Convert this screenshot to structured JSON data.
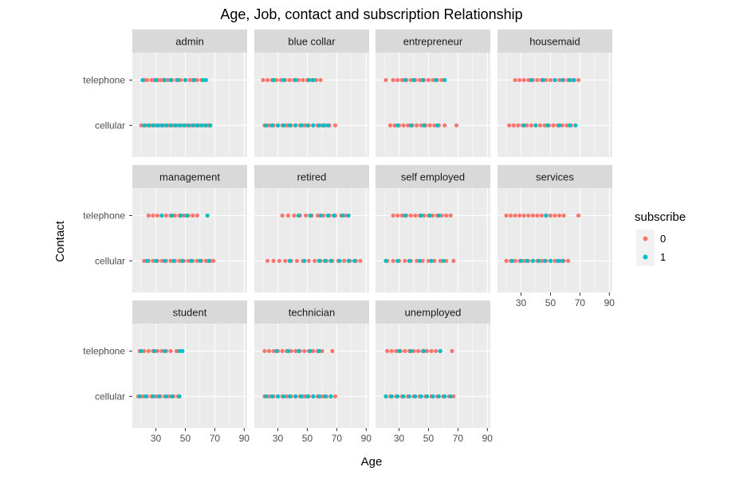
{
  "chart_data": {
    "type": "scatter",
    "title": "Age, Job, contact and subscription Relationship",
    "xlabel": "Age",
    "ylabel": "Contact",
    "xlim": [
      14,
      92
    ],
    "x_ticks": [
      30,
      50,
      70,
      90
    ],
    "y_categories": [
      "cellular",
      "telephone"
    ],
    "grid": true,
    "legend": {
      "title": "subscribe",
      "placement": "right",
      "entries": [
        {
          "label": "0",
          "color": "#F8766D"
        },
        {
          "label": "1",
          "color": "#00BFC4"
        }
      ]
    },
    "facets": [
      {
        "name": "admin",
        "telephone": {
          "0": [
            22,
            24,
            27,
            29,
            31,
            33,
            35,
            38,
            41,
            44,
            47,
            50,
            53,
            55,
            58,
            61
          ],
          "1": [
            21,
            30,
            36,
            40,
            45,
            50,
            56,
            62,
            64
          ]
        },
        "cellular": {
          "0": [
            20,
            23,
            26,
            29,
            32,
            35,
            38,
            41,
            44,
            47,
            50,
            53,
            56,
            59,
            63,
            66
          ],
          "1": [
            22,
            25,
            28,
            31,
            34,
            37,
            40,
            43,
            46,
            49,
            52,
            55,
            58,
            61,
            64,
            67
          ]
        }
      },
      {
        "name": "blue collar",
        "telephone": {
          "0": [
            20,
            23,
            26,
            29,
            32,
            35,
            38,
            41,
            44,
            47,
            50,
            53,
            56,
            59
          ],
          "1": [
            27,
            34,
            42,
            51,
            54
          ]
        },
        "cellular": {
          "0": [
            21,
            24,
            27,
            30,
            33,
            36,
            39,
            42,
            45,
            48,
            51,
            54,
            57,
            60,
            62,
            65,
            69
          ],
          "1": [
            22,
            26,
            30,
            34,
            38,
            42,
            46,
            50,
            54,
            58,
            61,
            64
          ]
        }
      },
      {
        "name": "entrepreneur",
        "telephone": {
          "0": [
            21,
            26,
            29,
            32,
            35,
            38,
            41,
            44,
            47,
            50,
            53,
            56,
            59
          ],
          "1": [
            34,
            40,
            46,
            55,
            61
          ]
        },
        "cellular": {
          "0": [
            24,
            27,
            30,
            33,
            36,
            39,
            42,
            45,
            48,
            51,
            54,
            57,
            61,
            69
          ],
          "1": [
            29,
            38,
            47,
            56
          ]
        }
      },
      {
        "name": "housemaid",
        "telephone": {
          "0": [
            26,
            29,
            32,
            35,
            38,
            41,
            44,
            47,
            50,
            53,
            56,
            59,
            62,
            65,
            69
          ],
          "1": [
            37,
            45,
            53,
            58,
            63,
            66
          ]
        },
        "cellular": {
          "0": [
            22,
            25,
            28,
            31,
            34,
            37,
            40,
            43,
            46,
            49,
            52,
            55,
            58,
            61,
            64
          ],
          "1": [
            32,
            40,
            48,
            56,
            63,
            67
          ]
        }
      },
      {
        "name": "management",
        "telephone": {
          "0": [
            25,
            28,
            31,
            34,
            37,
            40,
            43,
            46,
            49,
            52,
            55,
            58
          ],
          "1": [
            34,
            41,
            47,
            51,
            65
          ]
        },
        "cellular": {
          "0": [
            22,
            25,
            28,
            31,
            34,
            37,
            40,
            43,
            46,
            49,
            52,
            55,
            58,
            61,
            64,
            67,
            69
          ],
          "1": [
            24,
            30,
            36,
            42,
            48,
            54,
            60,
            66
          ]
        }
      },
      {
        "name": "retired",
        "telephone": {
          "0": [
            33,
            37,
            41,
            45,
            49,
            53,
            57,
            61,
            65,
            69,
            73,
            76
          ],
          "1": [
            44,
            52,
            59,
            64,
            68,
            74,
            78
          ]
        },
        "cellular": {
          "0": [
            23,
            27,
            31,
            35,
            39,
            43,
            47,
            51,
            55,
            59,
            63,
            67,
            71,
            75,
            79,
            83,
            86
          ],
          "1": [
            38,
            48,
            58,
            62,
            66,
            72,
            78,
            82
          ]
        }
      },
      {
        "name": "self employed",
        "telephone": {
          "0": [
            26,
            29,
            32,
            35,
            38,
            41,
            44,
            47,
            50,
            53,
            56,
            59,
            62,
            65
          ],
          "1": [
            34,
            45,
            51,
            57
          ]
        },
        "cellular": {
          "0": [
            22,
            26,
            30,
            34,
            38,
            42,
            46,
            50,
            54,
            58,
            62,
            67
          ],
          "1": [
            21,
            29,
            37,
            44,
            52,
            60
          ]
        }
      },
      {
        "name": "services",
        "telephone": {
          "0": [
            20,
            23,
            26,
            29,
            32,
            35,
            38,
            41,
            44,
            47,
            50,
            53,
            56,
            59,
            69
          ],
          "1": [
            47
          ]
        },
        "cellular": {
          "0": [
            20,
            23,
            26,
            29,
            32,
            35,
            38,
            41,
            44,
            47,
            50,
            53,
            56,
            59,
            62
          ],
          "1": [
            24,
            30,
            34,
            38,
            42,
            46,
            50,
            55,
            58
          ]
        }
      },
      {
        "name": "student",
        "telephone": {
          "0": [
            19,
            22,
            25,
            28,
            31,
            34,
            37,
            40,
            44
          ],
          "1": [
            20,
            29,
            36,
            46,
            48
          ]
        },
        "cellular": {
          "0": [
            18,
            21,
            24,
            27,
            30,
            33,
            36,
            39,
            42,
            45
          ],
          "1": [
            19,
            23,
            28,
            32,
            37,
            41,
            46
          ]
        }
      },
      {
        "name": "technician",
        "telephone": {
          "0": [
            21,
            24,
            27,
            30,
            33,
            36,
            39,
            42,
            45,
            48,
            51,
            54,
            57,
            60,
            67
          ],
          "1": [
            29,
            37,
            44,
            52,
            58
          ]
        },
        "cellular": {
          "0": [
            21,
            24,
            27,
            30,
            33,
            36,
            39,
            42,
            45,
            48,
            51,
            54,
            57,
            60,
            63,
            66,
            69
          ],
          "1": [
            22,
            26,
            30,
            34,
            38,
            42,
            46,
            50,
            54,
            58,
            62,
            66
          ]
        }
      },
      {
        "name": "unemployed",
        "telephone": {
          "0": [
            22,
            25,
            28,
            31,
            34,
            37,
            40,
            43,
            46,
            49,
            52,
            55,
            58,
            66
          ],
          "1": [
            30,
            38,
            47,
            58
          ]
        },
        "cellular": {
          "0": [
            24,
            28,
            32,
            36,
            40,
            44,
            48,
            52,
            56,
            60,
            64,
            67
          ],
          "1": [
            21,
            25,
            29,
            33,
            37,
            41,
            45,
            49,
            53,
            57,
            61,
            65
          ]
        }
      }
    ]
  }
}
